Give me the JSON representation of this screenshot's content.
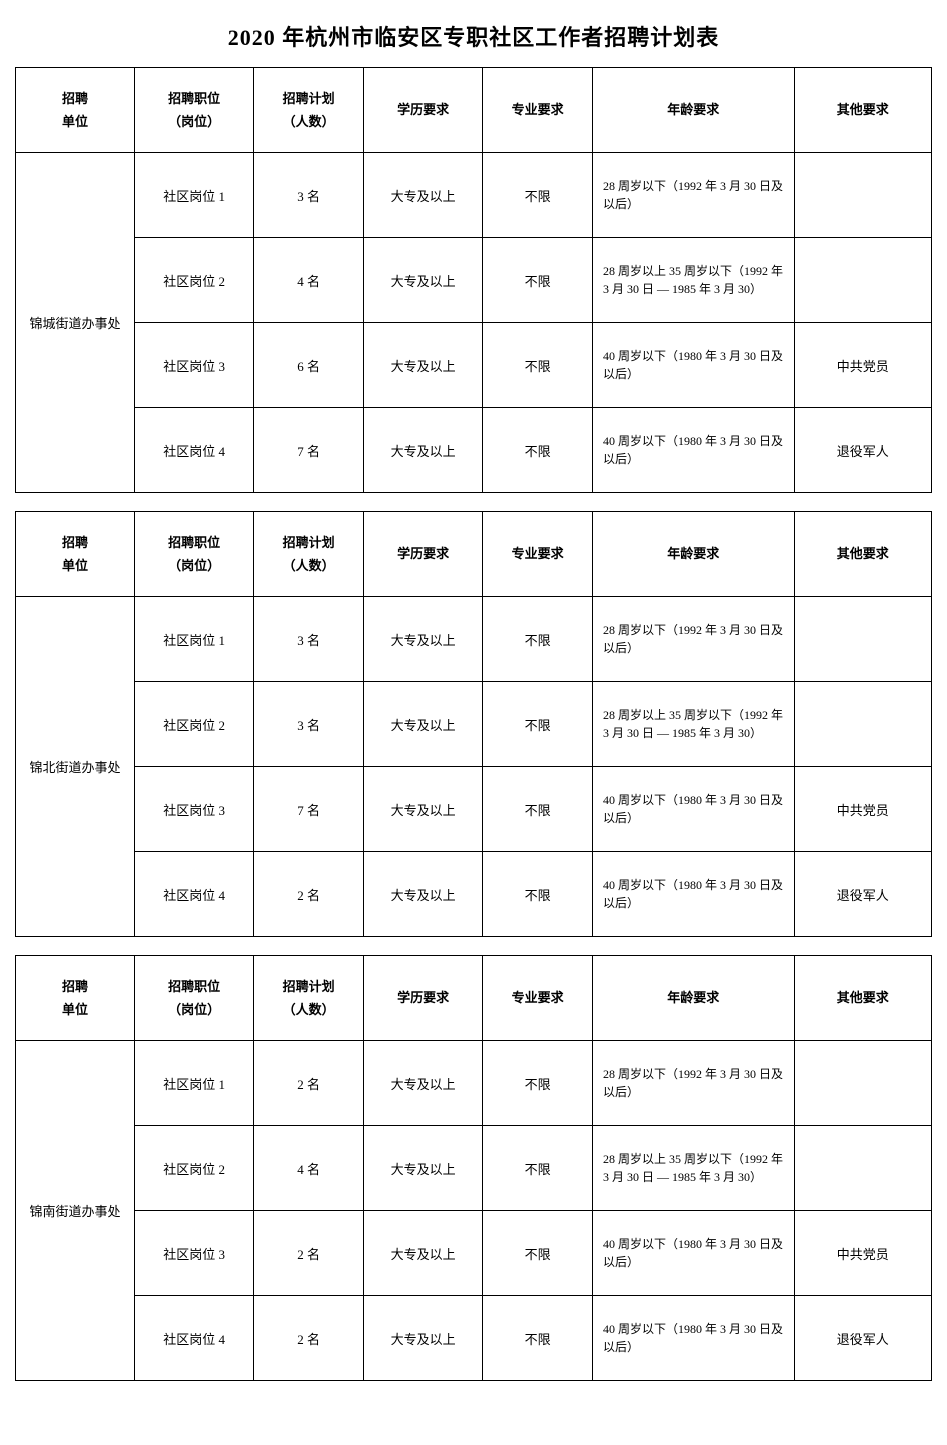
{
  "title": "2020 年杭州市临安区专职社区工作者招聘计划表",
  "headers": {
    "unit": "招聘\n单位",
    "position": "招聘职位\n（岗位）",
    "count": "招聘计划\n（人数）",
    "education": "学历要求",
    "major": "专业要求",
    "age": "年龄要求",
    "other": "其他要求"
  },
  "sections": [
    {
      "unit": "锦城街道办事处",
      "rows": [
        {
          "position": "社区岗位 1",
          "count": "3 名",
          "education": "大专及以上",
          "major": "不限",
          "age": "28 周岁以下（1992 年 3 月 30 日及以后）",
          "other": ""
        },
        {
          "position": "社区岗位 2",
          "count": "4 名",
          "education": "大专及以上",
          "major": "不限",
          "age": "28 周岁以上 35 周岁以下（1992 年 3 月 30 日 — 1985 年 3 月 30）",
          "other": ""
        },
        {
          "position": "社区岗位 3",
          "count": "6 名",
          "education": "大专及以上",
          "major": "不限",
          "age": "40 周岁以下（1980 年 3 月 30 日及以后）",
          "other": "中共党员"
        },
        {
          "position": "社区岗位 4",
          "count": "7 名",
          "education": "大专及以上",
          "major": "不限",
          "age": "40 周岁以下（1980 年 3 月 30 日及以后）",
          "other": "退役军人"
        }
      ]
    },
    {
      "unit": "锦北街道办事处",
      "rows": [
        {
          "position": "社区岗位 1",
          "count": "3 名",
          "education": "大专及以上",
          "major": "不限",
          "age": "28 周岁以下（1992 年 3 月 30 日及以后）",
          "other": ""
        },
        {
          "position": "社区岗位 2",
          "count": "3 名",
          "education": "大专及以上",
          "major": "不限",
          "age": "28 周岁以上 35 周岁以下（1992 年 3 月 30 日 — 1985 年 3 月 30）",
          "other": ""
        },
        {
          "position": "社区岗位 3",
          "count": "7 名",
          "education": "大专及以上",
          "major": "不限",
          "age": "40 周岁以下（1980 年 3 月 30 日及以后）",
          "other": "中共党员"
        },
        {
          "position": "社区岗位 4",
          "count": "2 名",
          "education": "大专及以上",
          "major": "不限",
          "age": "40 周岁以下（1980 年 3 月 30 日及以后）",
          "other": "退役军人"
        }
      ]
    },
    {
      "unit": "锦南街道办事处",
      "rows": [
        {
          "position": "社区岗位 1",
          "count": "2 名",
          "education": "大专及以上",
          "major": "不限",
          "age": "28 周岁以下（1992 年 3 月 30 日及以后）",
          "other": ""
        },
        {
          "position": "社区岗位 2",
          "count": "4 名",
          "education": "大专及以上",
          "major": "不限",
          "age": "28 周岁以上 35 周岁以下（1992 年 3 月 30 日 — 1985 年 3 月 30）",
          "other": ""
        },
        {
          "position": "社区岗位 3",
          "count": "2 名",
          "education": "大专及以上",
          "major": "不限",
          "age": "40 周岁以下（1980 年 3 月 30 日及以后）",
          "other": "中共党员"
        },
        {
          "position": "社区岗位 4",
          "count": "2 名",
          "education": "大专及以上",
          "major": "不限",
          "age": "40 周岁以下（1980 年 3 月 30 日及以后）",
          "other": "退役军人"
        }
      ]
    }
  ]
}
